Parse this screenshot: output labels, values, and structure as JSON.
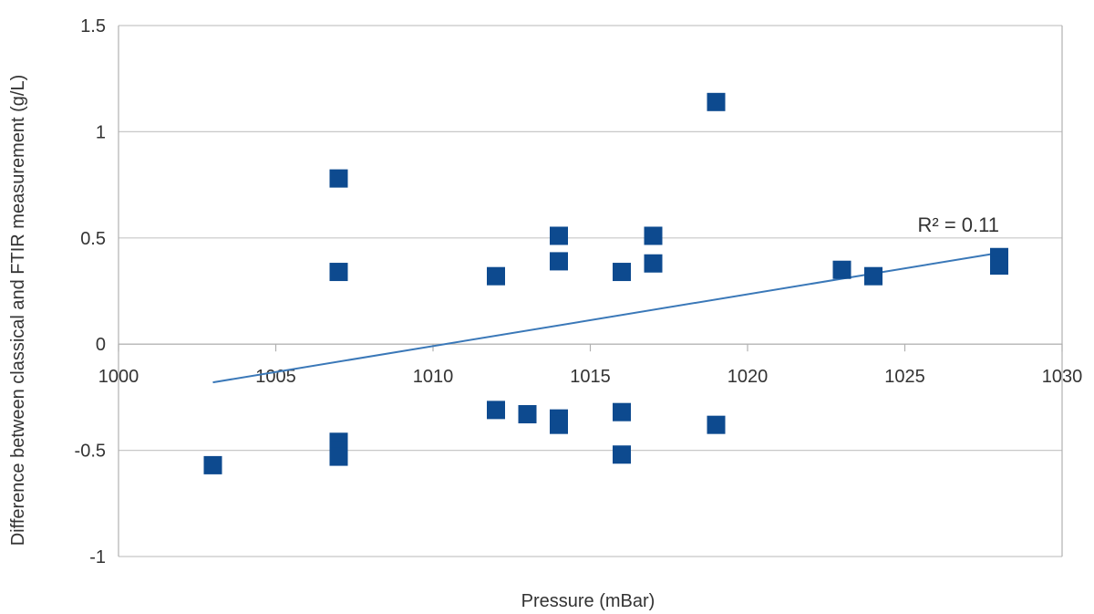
{
  "chart_data": {
    "type": "scatter",
    "title": "",
    "xlabel": "Pressure (mBar)",
    "ylabel": "Difference between classical and FTIR measurement (g/L)",
    "xlim": [
      1000,
      1030
    ],
    "ylim": [
      -1,
      1.5
    ],
    "xticks": [
      1000,
      1005,
      1010,
      1015,
      1020,
      1025,
      1030
    ],
    "yticks": [
      -1,
      -0.5,
      0,
      0.5,
      1,
      1.5
    ],
    "ytick_labels": [
      "-1",
      "-0.5",
      "0",
      "0.5",
      "1",
      "1.5"
    ],
    "grid": "horizontal",
    "legend": "none",
    "series": [
      {
        "color": "#0d4a8f",
        "marker": "square",
        "points": [
          {
            "x": 1003,
            "y": -0.57
          },
          {
            "x": 1007,
            "y": 0.78
          },
          {
            "x": 1007,
            "y": 0.34
          },
          {
            "x": 1007,
            "y": -0.46
          },
          {
            "x": 1007,
            "y": -0.5
          },
          {
            "x": 1007,
            "y": -0.53
          },
          {
            "x": 1012,
            "y": 0.32
          },
          {
            "x": 1012,
            "y": -0.31
          },
          {
            "x": 1013,
            "y": -0.33
          },
          {
            "x": 1014,
            "y": 0.51
          },
          {
            "x": 1014,
            "y": 0.39
          },
          {
            "x": 1014,
            "y": -0.35
          },
          {
            "x": 1014,
            "y": -0.38
          },
          {
            "x": 1016,
            "y": 0.34
          },
          {
            "x": 1016,
            "y": -0.32
          },
          {
            "x": 1016,
            "y": -0.52
          },
          {
            "x": 1017,
            "y": 0.51
          },
          {
            "x": 1017,
            "y": 0.38
          },
          {
            "x": 1019,
            "y": 1.14
          },
          {
            "x": 1019,
            "y": -0.38
          },
          {
            "x": 1023,
            "y": 0.35
          },
          {
            "x": 1024,
            "y": 0.32
          },
          {
            "x": 1028,
            "y": 0.41
          },
          {
            "x": 1028,
            "y": 0.37
          }
        ]
      }
    ],
    "trendline": {
      "type": "linear",
      "color": "#3a78b8",
      "x": [
        1003,
        1028
      ],
      "y": [
        -0.18,
        0.43
      ]
    },
    "annotations": [
      {
        "text": "R² = 0.11",
        "x": 1028,
        "y": 0.53
      }
    ]
  }
}
